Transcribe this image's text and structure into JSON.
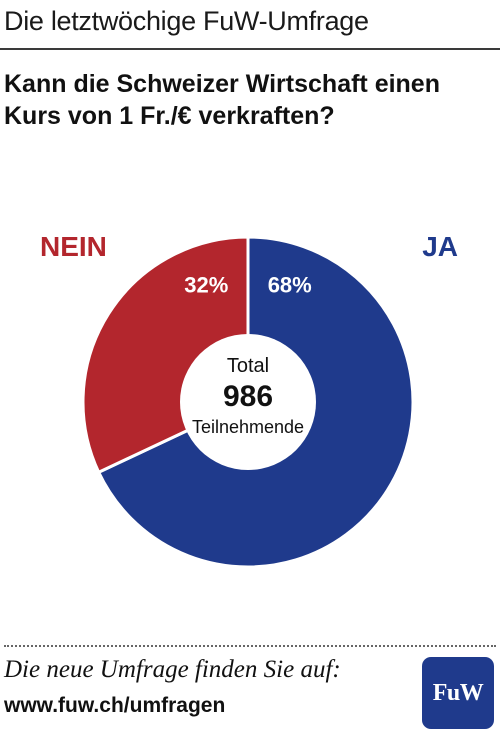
{
  "header": {
    "title": "Die letztwöchige FuW-Umfrage"
  },
  "question": {
    "line1": "Kann die Schweizer Wirtschaft einen",
    "line2": "Kurs von 1 Fr./€ verkraften?"
  },
  "chart_data": {
    "type": "pie",
    "style": "donut",
    "start": "top",
    "direction": "clockwise",
    "slices": [
      {
        "label": "JA",
        "value": 68,
        "value_label": "68%",
        "color": "#1f3a8c"
      },
      {
        "label": "NEIN",
        "value": 32,
        "value_label": "32%",
        "color": "#b3262d"
      }
    ],
    "center": {
      "line1": "Total",
      "value": "986",
      "line3": "Teilnehmende"
    }
  },
  "footer": {
    "text": "Die neue Umfrage finden Sie auf:",
    "url": "www.fuw.ch/umfragen"
  },
  "logo": {
    "text": "FuW",
    "color": "#1f3a8c"
  }
}
